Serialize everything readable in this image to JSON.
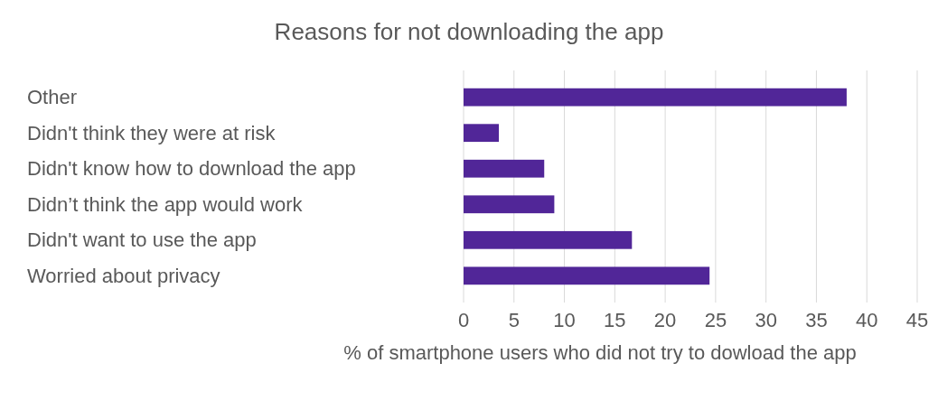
{
  "chart_data": {
    "type": "bar",
    "orientation": "horizontal",
    "title": "Reasons for not downloading the app",
    "xlabel": "% of smartphone users who did not try to dowload the app",
    "categories": [
      "Other",
      "Didn't think they were at risk",
      "Didn't know how to download the app",
      "Didn’t think the app would work",
      "Didn't want to use the app",
      "Worried about privacy"
    ],
    "values": [
      38,
      3.5,
      8,
      9,
      16.7,
      24.4
    ],
    "color": "#512698",
    "xlim": [
      0,
      45
    ],
    "xticks": [
      0,
      5,
      10,
      15,
      20,
      25,
      30,
      35,
      40,
      45
    ],
    "grid": "x"
  }
}
